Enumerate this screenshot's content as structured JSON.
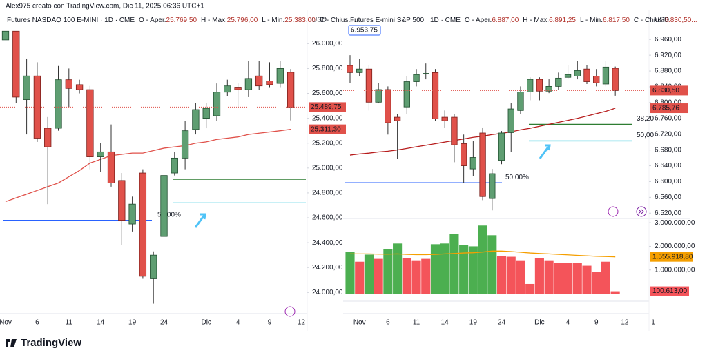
{
  "header": {
    "text": "Alex975 creato con TradingView.com, Dic 11, 2025 06:36 UTC+1"
  },
  "footer": {
    "logo": "TradingView"
  },
  "chart_data": [
    {
      "type": "candlestick",
      "title": "Futures NASDAQ 100 E-MINI · 1D · CME",
      "currency": "USD",
      "ohlc_header": [
        {
          "label": "O - Aper.",
          "value": "25.769,50"
        },
        {
          "label": "H - Max.",
          "value": "25.796,00"
        },
        {
          "label": "L - Min.",
          "value": "25.383,00"
        },
        {
          "label": "C - Chius....",
          "value": ""
        }
      ],
      "categories": [
        "Nov",
        null,
        null,
        "6",
        null,
        null,
        "11",
        null,
        null,
        "14",
        null,
        null,
        "19",
        null,
        null,
        "24",
        null,
        null,
        null,
        "Dic",
        null,
        null,
        "4",
        null,
        null,
        "9",
        null,
        null,
        "12"
      ],
      "open": [
        26030,
        26100,
        25550,
        25740,
        25320,
        25320,
        25710,
        25670,
        25630,
        25090,
        25130,
        24900,
        24550,
        24960,
        24110,
        24450,
        24960,
        25080,
        25310,
        25400,
        25420,
        25610,
        25650,
        25630,
        25740,
        25700,
        25680,
        25769.5,
        null
      ],
      "high": [
        26100,
        26100,
        25880,
        25850,
        25410,
        25820,
        25800,
        25710,
        25660,
        25200,
        25350,
        24960,
        24770,
        24990,
        24330,
        24960,
        25130,
        25380,
        25520,
        25520,
        25680,
        25710,
        25680,
        25860,
        25860,
        25850,
        25860,
        25796,
        null
      ],
      "low": [
        26030,
        25520,
        25270,
        25210,
        24710,
        25300,
        25490,
        25600,
        24990,
        24970,
        24850,
        24380,
        24490,
        24110,
        23910,
        24440,
        24940,
        24990,
        25270,
        25320,
        25380,
        25580,
        25490,
        25570,
        25630,
        25650,
        25650,
        25383,
        null
      ],
      "close": [
        26100,
        25570,
        25740,
        25240,
        25170,
        25710,
        25640,
        25630,
        25090,
        25130,
        24880,
        24580,
        24710,
        24130,
        24300,
        24940,
        25080,
        25300,
        25470,
        25480,
        25610,
        25660,
        25630,
        25720,
        25660,
        25670,
        25800,
        25489.75,
        null
      ],
      "up_color": "#5f9e72",
      "down_color": "#e0514a",
      "last_label": "25.489,75",
      "ma": {
        "color": "#e0514a",
        "label": "25.311,30",
        "values": [
          24730,
          24760,
          24790,
          24820,
          24850,
          24880,
          24930,
          24980,
          25040,
          25070,
          25100,
          25110,
          25120,
          25120,
          25140,
          25160,
          25170,
          25180,
          25200,
          25210,
          25230,
          25240,
          25250,
          25270,
          25280,
          25290,
          25300,
          25311.3,
          null
        ]
      },
      "levels": [
        {
          "value": 24580,
          "color": "#2962ff",
          "label": "50,00%"
        },
        {
          "value": 24910,
          "color": "#2e7d32"
        },
        {
          "value": 24720,
          "color": "#26c6da"
        }
      ],
      "ylim": [
        23830,
        26240
      ],
      "yticks": [
        {
          "value": 26000,
          "label": "26.000,00"
        },
        {
          "value": 25800,
          "label": "25.800,00"
        },
        {
          "value": 25600,
          "label": "25.600,00"
        },
        {
          "value": 25400,
          "label": "25.400,00"
        },
        {
          "value": 25200,
          "label": "25.200,00"
        },
        {
          "value": 25000,
          "label": "25.000,00"
        },
        {
          "value": 24800,
          "label": "24.800,00"
        },
        {
          "value": 24600,
          "label": "24.600,00"
        },
        {
          "value": 24400,
          "label": "24.400,00"
        },
        {
          "value": 24200,
          "label": "24.200,00"
        },
        {
          "value": 24000,
          "label": "24.000,00"
        }
      ]
    },
    {
      "type": "candlestick",
      "title": "Futures E-mini S&P 500 · 1D · CME",
      "currency": "USD",
      "ohlc_header": [
        {
          "label": "O - Aper.",
          "value": "6.887,00"
        },
        {
          "label": "H - Max.",
          "value": "6.891,25"
        },
        {
          "label": "L - Min.",
          "value": "6.817,50"
        },
        {
          "label": "C - Chius.",
          "value": "6.830,50..."
        }
      ],
      "alert_label": "6.953,75",
      "categories": [
        null,
        "Nov",
        null,
        null,
        "6",
        null,
        null,
        "11",
        null,
        null,
        "14",
        null,
        null,
        "19",
        null,
        null,
        "24",
        null,
        null,
        null,
        "Dic",
        null,
        null,
        "4",
        null,
        null,
        "9",
        null,
        null,
        "12",
        null,
        null,
        "1"
      ],
      "open": [
        6894,
        6876,
        6885,
        6801,
        6833,
        6763,
        6789,
        6853,
        6873,
        6876,
        6763,
        6763,
        6696,
        6632,
        6723,
        6557,
        6654,
        6724,
        6780,
        6827,
        6859,
        6829,
        6841,
        6864,
        6867,
        6885,
        6867,
        6847,
        6887,
        null,
        null,
        null,
        null
      ],
      "high": [
        6920,
        6911,
        6894,
        6850,
        6841,
        6771,
        6867,
        6885,
        6899,
        6885,
        6780,
        6771,
        6719,
        6702,
        6737,
        6632,
        6728,
        6798,
        6841,
        6864,
        6864,
        6859,
        6876,
        6894,
        6906,
        6894,
        6885,
        6906,
        6891.25,
        null,
        null,
        null,
        null
      ],
      "low": [
        6850,
        6867,
        6780,
        6798,
        6719,
        6658,
        6771,
        6841,
        6859,
        6754,
        6737,
        6649,
        6597,
        6614,
        6553,
        6527,
        6644,
        6675,
        6771,
        6806,
        6806,
        6824,
        6833,
        6859,
        6859,
        6847,
        6841,
        6841,
        6817.5,
        null,
        null,
        null,
        null
      ],
      "close": [
        6876,
        6885,
        6801,
        6833,
        6749,
        6754,
        6853,
        6871,
        6874,
        6759,
        6754,
        6693,
        6640,
        6661,
        6562,
        6620,
        6723,
        6784,
        6827,
        6859,
        6829,
        6841,
        6862,
        6871,
        6881,
        6853,
        6850,
        6890,
        6830.5,
        null,
        null,
        null,
        null
      ],
      "up_color": "#5f9e72",
      "down_color": "#e0514a",
      "last_label": "6.830,50",
      "ma": {
        "color": "#b71c1c",
        "label": "6.785,76",
        "values": [
          6667,
          6670,
          6672,
          6675,
          6677,
          6680,
          6684,
          6688,
          6692,
          6696,
          6700,
          6704,
          6708,
          6712,
          6715,
          6719,
          6722,
          6726,
          6731,
          6735,
          6740,
          6745,
          6750,
          6755,
          6760,
          6766,
          6772,
          6778,
          6785.76,
          null,
          null,
          null,
          null
        ]
      },
      "levels": [
        {
          "value": 6597,
          "color": "#2962ff",
          "label": "50,00%"
        },
        {
          "value": 6745,
          "color": "#2e7d32",
          "label": "38,20"
        },
        {
          "value": 6703,
          "color": "#26c6da",
          "label": "50,00"
        }
      ],
      "ylim": [
        6510,
        7025
      ],
      "yticks": [
        {
          "value": 6960,
          "label": "6.960,00"
        },
        {
          "value": 6920,
          "label": "6.920,00"
        },
        {
          "value": 6880,
          "label": "6.880,00"
        },
        {
          "value": 6840,
          "label": "6.840,00"
        },
        {
          "value": 6800,
          "label": "6.800,00"
        },
        {
          "value": 6760,
          "label": "6.760,00"
        },
        {
          "value": 6720,
          "label": "6.720,00"
        },
        {
          "value": 6680,
          "label": "6.680,00"
        },
        {
          "value": 6640,
          "label": "6.640,00"
        },
        {
          "value": 6600,
          "label": "6.600,00"
        },
        {
          "value": 6560,
          "label": "6.560,00"
        },
        {
          "value": 6520,
          "label": "6.520,00"
        }
      ],
      "volume": {
        "values": [
          1760000,
          1350000,
          1650000,
          1470000,
          1880000,
          2120000,
          1500000,
          1410000,
          1470000,
          2090000,
          2120000,
          2530000,
          2060000,
          2000000,
          2880000,
          2470000,
          1590000,
          1560000,
          1410000,
          410000,
          1500000,
          1410000,
          1290000,
          1290000,
          1290000,
          1180000,
          910000,
          1350000,
          100613,
          null,
          null,
          null,
          null
        ],
        "colors": [
          "#4caf50",
          "#f4545a",
          "#4caf50",
          "#f4545a",
          "#4caf50",
          "#4caf50",
          "#f4545a",
          "#f4545a",
          "#f4545a",
          "#4caf50",
          "#4caf50",
          "#4caf50",
          "#4caf50",
          "#4caf50",
          "#4caf50",
          "#4caf50",
          "#f4545a",
          "#f4545a",
          "#f4545a",
          "#f4545a",
          "#f4545a",
          "#f4545a",
          "#f4545a",
          "#f4545a",
          "#f4545a",
          "#f4545a",
          "#f4545a",
          "#f4545a",
          "#f4545a",
          null,
          null,
          null,
          null
        ],
        "value_label": "100.613,00",
        "ma": {
          "color": "#f59f00",
          "label": "1.555.918,80",
          "values": [
            1680000,
            1680000,
            1680000,
            1670000,
            1670000,
            1680000,
            1660000,
            1650000,
            1650000,
            1660000,
            1680000,
            1700000,
            1720000,
            1730000,
            1760000,
            1800000,
            1800000,
            1780000,
            1750000,
            1720000,
            1700000,
            1680000,
            1660000,
            1640000,
            1620000,
            1600000,
            1580000,
            1570000,
            1555918.8,
            null,
            null,
            null,
            null
          ]
        },
        "ylim": [
          -320000,
          3150000
        ],
        "yticks": [
          {
            "value": 3000000,
            "label": "3.000.000,00"
          },
          {
            "value": 2000000,
            "label": "2.000.000,00"
          },
          {
            "value": 1000000,
            "label": "1.000.000,00"
          }
        ]
      }
    }
  ]
}
